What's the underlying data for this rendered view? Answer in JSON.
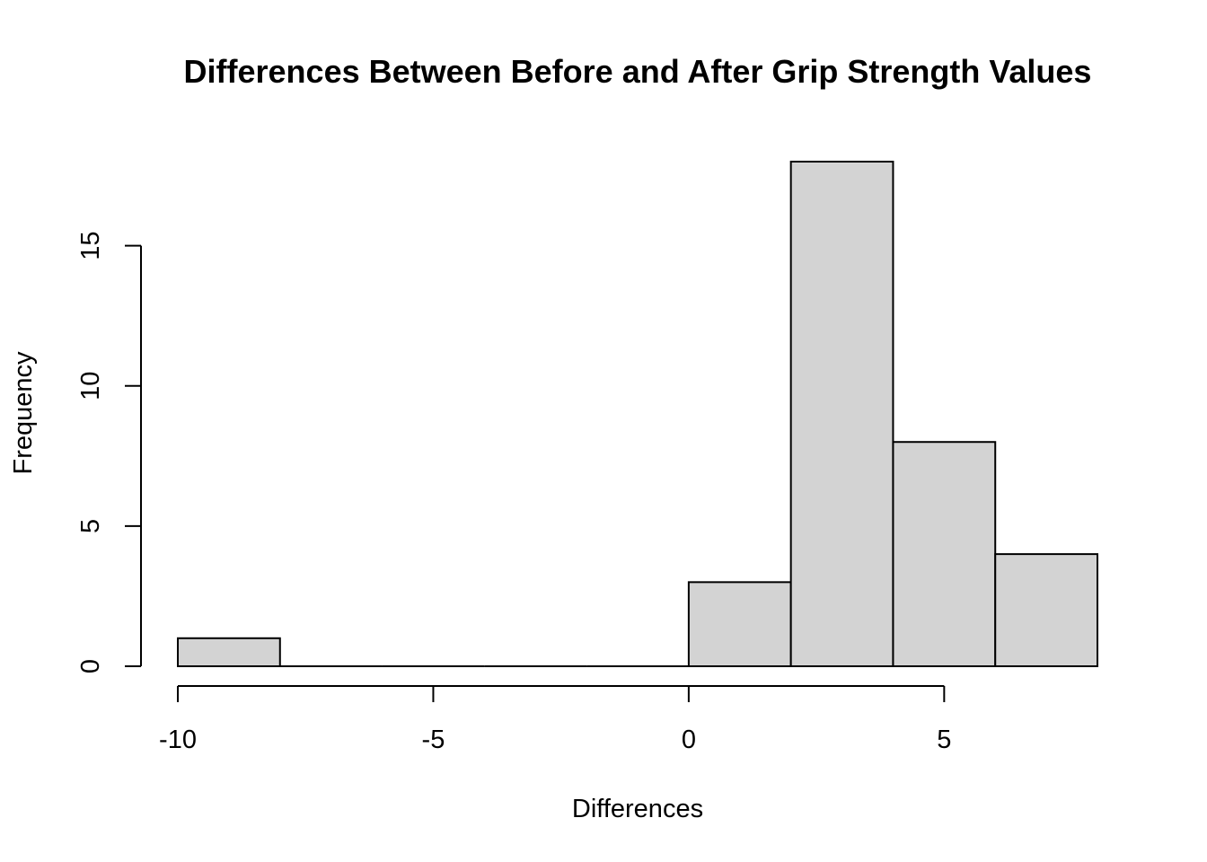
{
  "chart_data": {
    "type": "bar",
    "title": "Differences Between Before and After Grip Strength Values",
    "xlabel": "Differences",
    "ylabel": "Frequency",
    "bins": [
      {
        "start": -10,
        "end": -8,
        "count": 1
      },
      {
        "start": -8,
        "end": -6,
        "count": 0
      },
      {
        "start": -6,
        "end": -4,
        "count": 0
      },
      {
        "start": -4,
        "end": -2,
        "count": 0
      },
      {
        "start": -2,
        "end": 0,
        "count": 0
      },
      {
        "start": 0,
        "end": 2,
        "count": 3
      },
      {
        "start": 2,
        "end": 4,
        "count": 18
      },
      {
        "start": 4,
        "end": 6,
        "count": 8
      },
      {
        "start": 6,
        "end": 8,
        "count": 4
      }
    ],
    "x_ticks": [
      -10,
      -5,
      0,
      5
    ],
    "x_tick_labels": [
      "-10",
      "-5",
      "0",
      "5"
    ],
    "y_ticks": [
      0,
      5,
      10,
      15
    ],
    "y_tick_labels": [
      "0",
      "5",
      "10",
      "15"
    ],
    "xlim": [
      -10,
      8
    ],
    "ylim": [
      0,
      18
    ],
    "grid": false,
    "legend": "none",
    "colors": {
      "bar_fill": "#d3d3d3",
      "bar_stroke": "#000000",
      "axis": "#000000"
    }
  }
}
